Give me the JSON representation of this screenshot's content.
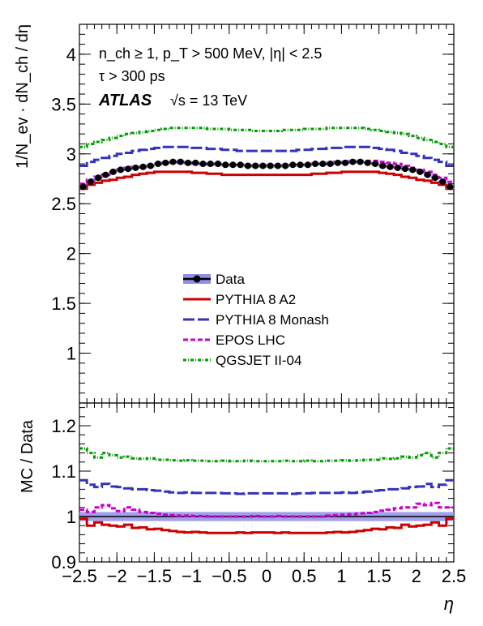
{
  "chart_data": [
    {
      "type": "line",
      "panel": "top",
      "ylabel": "1/N_ev · dN_ch / dη",
      "ylim": [
        0.5,
        4.3
      ],
      "yticks": [
        1,
        1.5,
        2,
        2.5,
        3,
        3.5,
        4
      ],
      "xlim": [
        -2.5,
        2.5
      ],
      "annotations": {
        "line1": "n_ch ≥ 1, p_T > 500 MeV, |η| < 2.5",
        "line2": "τ > 300 ps",
        "atlas": "ATLAS",
        "energy": "√s = 13 TeV"
      },
      "legend": {
        "placement": "center",
        "entries": [
          "Data",
          "PYTHIA 8 A2",
          "PYTHIA 8 Monash",
          "EPOS LHC",
          "QGSJET II-04"
        ]
      },
      "x": [
        -2.45,
        -2.35,
        -2.25,
        -2.15,
        -2.05,
        -1.95,
        -1.85,
        -1.75,
        -1.65,
        -1.55,
        -1.45,
        -1.35,
        -1.25,
        -1.15,
        -1.05,
        -0.95,
        -0.85,
        -0.75,
        -0.65,
        -0.55,
        -0.45,
        -0.35,
        -0.25,
        -0.15,
        -0.05,
        0.05,
        0.15,
        0.25,
        0.35,
        0.45,
        0.55,
        0.65,
        0.75,
        0.85,
        0.95,
        1.05,
        1.15,
        1.25,
        1.35,
        1.45,
        1.55,
        1.65,
        1.75,
        1.85,
        1.95,
        2.05,
        2.15,
        2.25,
        2.35,
        2.45
      ],
      "series": [
        {
          "name": "Data",
          "color": "#000000",
          "values": [
            2.67,
            2.72,
            2.76,
            2.79,
            2.82,
            2.84,
            2.85,
            2.86,
            2.87,
            2.88,
            2.9,
            2.91,
            2.92,
            2.92,
            2.91,
            2.91,
            2.9,
            2.9,
            2.9,
            2.89,
            2.89,
            2.89,
            2.88,
            2.88,
            2.88,
            2.88,
            2.88,
            2.88,
            2.89,
            2.89,
            2.89,
            2.9,
            2.9,
            2.9,
            2.91,
            2.91,
            2.92,
            2.92,
            2.91,
            2.9,
            2.88,
            2.87,
            2.86,
            2.85,
            2.84,
            2.82,
            2.79,
            2.76,
            2.72,
            2.67
          ]
        },
        {
          "name": "PYTHIA 8 A2",
          "color": "#cc0000",
          "values": [
            2.65,
            2.69,
            2.71,
            2.73,
            2.74,
            2.76,
            2.77,
            2.79,
            2.8,
            2.81,
            2.82,
            2.82,
            2.82,
            2.82,
            2.82,
            2.81,
            2.81,
            2.8,
            2.8,
            2.79,
            2.79,
            2.79,
            2.79,
            2.79,
            2.79,
            2.79,
            2.79,
            2.79,
            2.79,
            2.79,
            2.79,
            2.8,
            2.8,
            2.81,
            2.81,
            2.82,
            2.82,
            2.82,
            2.82,
            2.82,
            2.81,
            2.8,
            2.79,
            2.77,
            2.76,
            2.74,
            2.73,
            2.71,
            2.69,
            2.65
          ]
        },
        {
          "name": "PYTHIA 8 Monash",
          "color": "#3333bb",
          "values": [
            2.88,
            2.92,
            2.94,
            2.96,
            2.98,
            3.0,
            3.01,
            3.03,
            3.04,
            3.05,
            3.06,
            3.07,
            3.07,
            3.07,
            3.07,
            3.06,
            3.06,
            3.05,
            3.05,
            3.04,
            3.04,
            3.03,
            3.03,
            3.03,
            3.03,
            3.03,
            3.03,
            3.03,
            3.03,
            3.04,
            3.04,
            3.05,
            3.05,
            3.06,
            3.06,
            3.07,
            3.07,
            3.07,
            3.07,
            3.06,
            3.05,
            3.04,
            3.03,
            3.01,
            3.0,
            2.98,
            2.96,
            2.94,
            2.92,
            2.88
          ]
        },
        {
          "name": "EPOS LHC",
          "color": "#cc00cc",
          "values": [
            2.7,
            2.74,
            2.77,
            2.79,
            2.82,
            2.84,
            2.86,
            2.87,
            2.88,
            2.89,
            2.9,
            2.91,
            2.91,
            2.91,
            2.91,
            2.9,
            2.9,
            2.89,
            2.89,
            2.89,
            2.89,
            2.89,
            2.89,
            2.89,
            2.89,
            2.89,
            2.89,
            2.89,
            2.89,
            2.89,
            2.89,
            2.9,
            2.9,
            2.91,
            2.92,
            2.92,
            2.93,
            2.93,
            2.93,
            2.93,
            2.92,
            2.91,
            2.9,
            2.88,
            2.86,
            2.84,
            2.82,
            2.79,
            2.76,
            2.72
          ]
        },
        {
          "name": "QGSJET II-04",
          "color": "#009900",
          "values": [
            3.07,
            3.1,
            3.12,
            3.14,
            3.16,
            3.18,
            3.2,
            3.21,
            3.22,
            3.23,
            3.24,
            3.25,
            3.26,
            3.26,
            3.26,
            3.26,
            3.26,
            3.25,
            3.25,
            3.25,
            3.24,
            3.24,
            3.24,
            3.23,
            3.23,
            3.23,
            3.23,
            3.24,
            3.24,
            3.24,
            3.25,
            3.25,
            3.25,
            3.26,
            3.26,
            3.26,
            3.26,
            3.26,
            3.25,
            3.24,
            3.23,
            3.22,
            3.21,
            3.2,
            3.18,
            3.16,
            3.14,
            3.12,
            3.1,
            3.07
          ]
        }
      ]
    },
    {
      "type": "line",
      "panel": "ratio",
      "xlabel": "η",
      "ylabel": "MC / Data",
      "ylim": [
        0.9,
        1.25
      ],
      "yticks": [
        0.9,
        1,
        1.1,
        1.2
      ],
      "xlim": [
        -2.5,
        2.5
      ],
      "xticks": [
        -2.5,
        -2,
        -1.5,
        -1,
        -0.5,
        0,
        0.5,
        1,
        1.5,
        2,
        2.5
      ],
      "xtick_labels": [
        "−2.5",
        "−2",
        "−1.5",
        "−1",
        "−0.5",
        "0",
        "0.5",
        "1",
        "1.5",
        "2",
        "2.5"
      ],
      "data_band": {
        "center": 1.0,
        "halfwidth": 0.01
      },
      "x": [
        -2.45,
        -2.35,
        -2.25,
        -2.15,
        -2.05,
        -1.95,
        -1.85,
        -1.75,
        -1.65,
        -1.55,
        -1.45,
        -1.35,
        -1.25,
        -1.15,
        -1.05,
        -0.95,
        -0.85,
        -0.75,
        -0.65,
        -0.55,
        -0.45,
        -0.35,
        -0.25,
        -0.15,
        -0.05,
        0.05,
        0.15,
        0.25,
        0.35,
        0.45,
        0.55,
        0.65,
        0.75,
        0.85,
        0.95,
        1.05,
        1.15,
        1.25,
        1.35,
        1.45,
        1.55,
        1.65,
        1.75,
        1.85,
        1.95,
        2.05,
        2.15,
        2.25,
        2.35,
        2.45
      ],
      "series": [
        {
          "name": "PYTHIA 8 A2",
          "color": "#cc0000",
          "values": [
            0.995,
            0.98,
            0.987,
            0.982,
            0.98,
            0.978,
            0.982,
            0.975,
            0.976,
            0.972,
            0.973,
            0.97,
            0.968,
            0.966,
            0.965,
            0.966,
            0.965,
            0.964,
            0.964,
            0.964,
            0.964,
            0.965,
            0.964,
            0.965,
            0.965,
            0.965,
            0.964,
            0.965,
            0.964,
            0.964,
            0.964,
            0.964,
            0.964,
            0.965,
            0.966,
            0.965,
            0.966,
            0.968,
            0.97,
            0.973,
            0.972,
            0.976,
            0.975,
            0.982,
            0.978,
            0.98,
            0.982,
            0.987,
            0.98,
            0.995
          ]
        },
        {
          "name": "PYTHIA 8 Monash",
          "color": "#3333bb",
          "values": [
            1.08,
            1.07,
            1.065,
            1.072,
            1.066,
            1.065,
            1.062,
            1.06,
            1.06,
            1.058,
            1.057,
            1.055,
            1.053,
            1.052,
            1.053,
            1.052,
            1.052,
            1.052,
            1.052,
            1.051,
            1.051,
            1.05,
            1.051,
            1.051,
            1.051,
            1.051,
            1.051,
            1.051,
            1.05,
            1.051,
            1.051,
            1.052,
            1.052,
            1.052,
            1.052,
            1.053,
            1.052,
            1.053,
            1.055,
            1.057,
            1.058,
            1.06,
            1.06,
            1.062,
            1.065,
            1.066,
            1.072,
            1.065,
            1.07,
            1.08
          ]
        },
        {
          "name": "EPOS LHC",
          "color": "#cc00cc",
          "values": [
            1.015,
            1.01,
            1.02,
            1.025,
            1.018,
            1.012,
            1.02,
            1.015,
            1.01,
            1.008,
            1.006,
            1.004,
            1.003,
            1.002,
            1.002,
            1.001,
            1.001,
            1.0,
            1.0,
            1.0,
            1.0,
            1.0,
            1.0,
            1.001,
            1.0,
            1.0,
            1.001,
            1.0,
            1.0,
            1.0,
            1.0,
            1.0,
            1.0,
            1.002,
            1.003,
            1.004,
            1.005,
            1.007,
            1.008,
            1.01,
            1.013,
            1.015,
            1.018,
            1.02,
            1.02,
            1.028,
            1.025,
            1.03,
            1.02,
            1.02
          ]
        },
        {
          "name": "QGSJET II-04",
          "color": "#009900",
          "values": [
            1.15,
            1.14,
            1.13,
            1.14,
            1.135,
            1.13,
            1.132,
            1.128,
            1.127,
            1.128,
            1.125,
            1.125,
            1.124,
            1.123,
            1.124,
            1.123,
            1.123,
            1.122,
            1.122,
            1.123,
            1.122,
            1.122,
            1.123,
            1.122,
            1.122,
            1.122,
            1.122,
            1.123,
            1.122,
            1.122,
            1.123,
            1.122,
            1.122,
            1.123,
            1.123,
            1.124,
            1.123,
            1.124,
            1.125,
            1.125,
            1.128,
            1.127,
            1.128,
            1.132,
            1.13,
            1.135,
            1.14,
            1.13,
            1.14,
            1.15
          ]
        }
      ]
    }
  ]
}
